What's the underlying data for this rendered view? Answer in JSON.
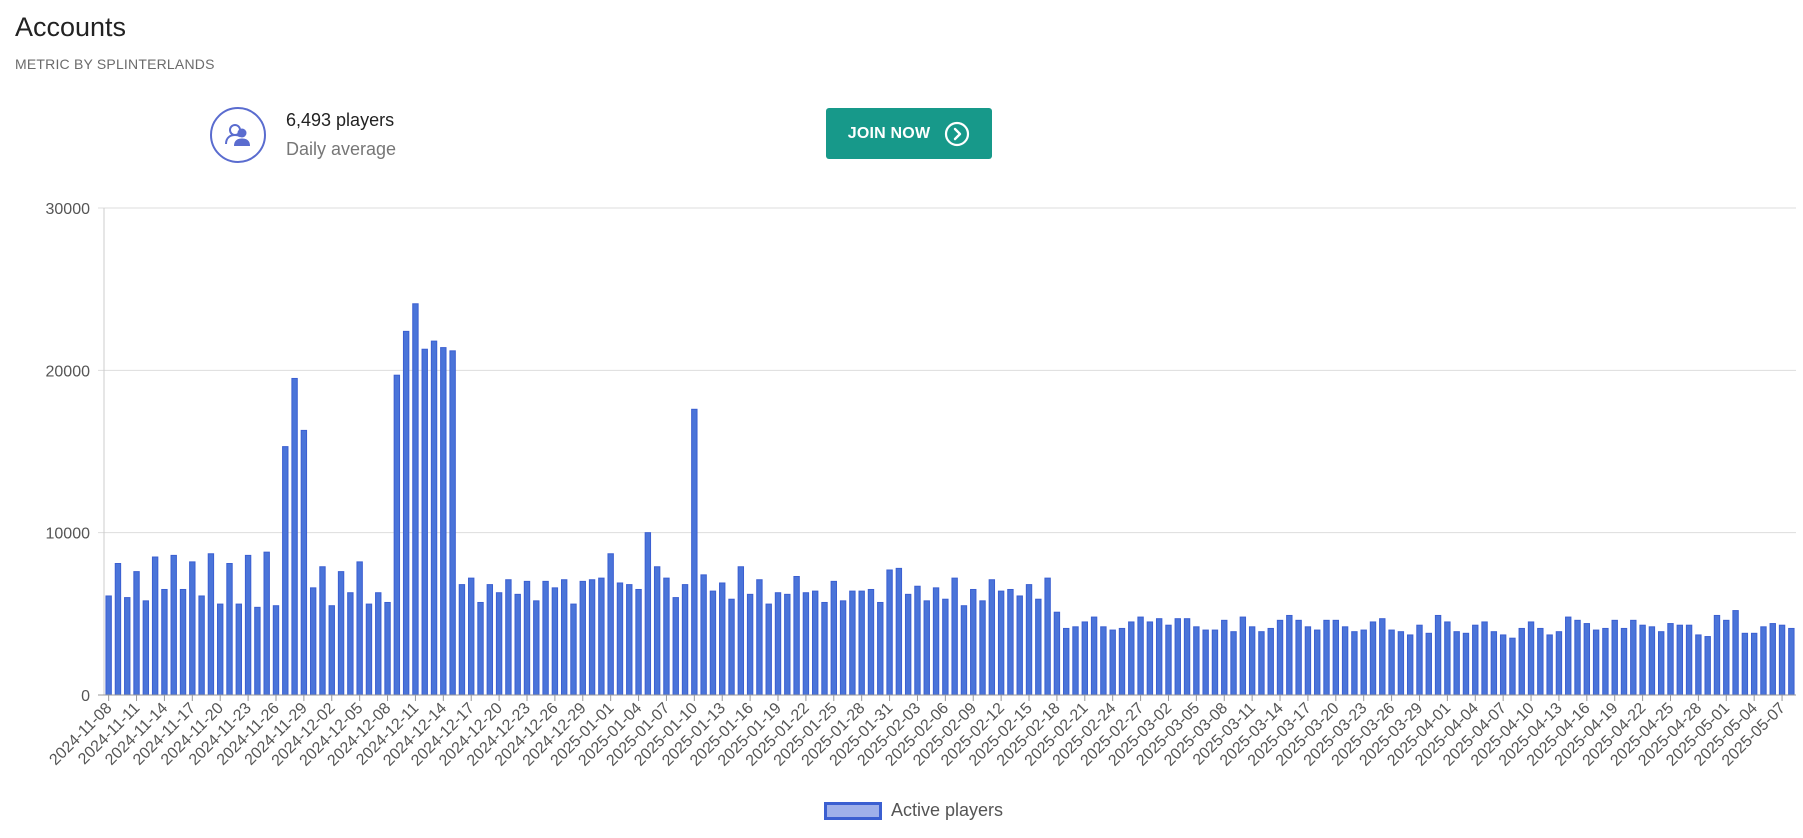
{
  "page": {
    "title": "Accounts",
    "subtitle": "METRIC BY SPLINTERLANDS"
  },
  "stat": {
    "value": "6,493 players",
    "label": "Daily average",
    "icon": "users-icon"
  },
  "cta": {
    "label": "JOIN NOW",
    "icon": "chevron-circle-right-icon",
    "color": "#17998a"
  },
  "chart_data": {
    "type": "bar",
    "start_date": "2024-11-08",
    "end_date": "2025-05-08",
    "categories": [
      "2024-11-08",
      "2024-11-09",
      "2024-11-10",
      "2024-11-11",
      "2024-11-12",
      "2024-11-13",
      "2024-11-14",
      "2024-11-15",
      "2024-11-16",
      "2024-11-17",
      "2024-11-18",
      "2024-11-19",
      "2024-11-20",
      "2024-11-21",
      "2024-11-22",
      "2024-11-23",
      "2024-11-24",
      "2024-11-25",
      "2024-11-26",
      "2024-11-27",
      "2024-11-28",
      "2024-11-29",
      "2024-11-30",
      "2024-12-01",
      "2024-12-02",
      "2024-12-03",
      "2024-12-04",
      "2024-12-05",
      "2024-12-06",
      "2024-12-07",
      "2024-12-08",
      "2024-12-09",
      "2024-12-10",
      "2024-12-11",
      "2024-12-12",
      "2024-12-13",
      "2024-12-14",
      "2024-12-15",
      "2024-12-16",
      "2024-12-17",
      "2024-12-18",
      "2024-12-19",
      "2024-12-20",
      "2024-12-21",
      "2024-12-22",
      "2024-12-23",
      "2024-12-24",
      "2024-12-25",
      "2024-12-26",
      "2024-12-27",
      "2024-12-28",
      "2024-12-29",
      "2024-12-30",
      "2024-12-31",
      "2025-01-01",
      "2025-01-02",
      "2025-01-03",
      "2025-01-04",
      "2025-01-05",
      "2025-01-06",
      "2025-01-07",
      "2025-01-08",
      "2025-01-09",
      "2025-01-10",
      "2025-01-11",
      "2025-01-12",
      "2025-01-13",
      "2025-01-14",
      "2025-01-15",
      "2025-01-16",
      "2025-01-17",
      "2025-01-18",
      "2025-01-19",
      "2025-01-20",
      "2025-01-21",
      "2025-01-22",
      "2025-01-23",
      "2025-01-24",
      "2025-01-25",
      "2025-01-26",
      "2025-01-27",
      "2025-01-28",
      "2025-01-29",
      "2025-01-30",
      "2025-01-31",
      "2025-02-01",
      "2025-02-02",
      "2025-02-03",
      "2025-02-04",
      "2025-02-05",
      "2025-02-06",
      "2025-02-07",
      "2025-02-08",
      "2025-02-09",
      "2025-02-10",
      "2025-02-11",
      "2025-02-12",
      "2025-02-13",
      "2025-02-14",
      "2025-02-15",
      "2025-02-16",
      "2025-02-17",
      "2025-02-18",
      "2025-02-19",
      "2025-02-20",
      "2025-02-21",
      "2025-02-22",
      "2025-02-23",
      "2025-02-24",
      "2025-02-25",
      "2025-02-26",
      "2025-02-27",
      "2025-02-28",
      "2025-03-01",
      "2025-03-02",
      "2025-03-03",
      "2025-03-04",
      "2025-03-05",
      "2025-03-06",
      "2025-03-07",
      "2025-03-08",
      "2025-03-09",
      "2025-03-10",
      "2025-03-11",
      "2025-03-12",
      "2025-03-13",
      "2025-03-14",
      "2025-03-15",
      "2025-03-16",
      "2025-03-17",
      "2025-03-18",
      "2025-03-19",
      "2025-03-20",
      "2025-03-21",
      "2025-03-22",
      "2025-03-23",
      "2025-03-24",
      "2025-03-25",
      "2025-03-26",
      "2025-03-27",
      "2025-03-28",
      "2025-03-29",
      "2025-03-30",
      "2025-03-31",
      "2025-04-01",
      "2025-04-02",
      "2025-04-03",
      "2025-04-04",
      "2025-04-05",
      "2025-04-06",
      "2025-04-07",
      "2025-04-08",
      "2025-04-09",
      "2025-04-10",
      "2025-04-11",
      "2025-04-12",
      "2025-04-13",
      "2025-04-14",
      "2025-04-15",
      "2025-04-16",
      "2025-04-17",
      "2025-04-18",
      "2025-04-19",
      "2025-04-20",
      "2025-04-21",
      "2025-04-22",
      "2025-04-23",
      "2025-04-24",
      "2025-04-25",
      "2025-04-26",
      "2025-04-27",
      "2025-04-28",
      "2025-04-29",
      "2025-04-30",
      "2025-05-01",
      "2025-05-02",
      "2025-05-03",
      "2025-05-04",
      "2025-05-05",
      "2025-05-06",
      "2025-05-07",
      "2025-05-08"
    ],
    "series": [
      {
        "name": "Active players",
        "color": "#3b5fd1",
        "fill": "#4a74d9",
        "values": [
          6100,
          8100,
          6000,
          7600,
          5800,
          8500,
          6500,
          8600,
          6500,
          8200,
          6100,
          8700,
          5600,
          8100,
          5600,
          8600,
          5400,
          8800,
          5500,
          15300,
          19500,
          16300,
          6600,
          7900,
          5500,
          7600,
          6300,
          8200,
          5600,
          6300,
          5700,
          19700,
          22400,
          24100,
          21300,
          21800,
          21400,
          21200,
          6800,
          7200,
          5700,
          6800,
          6300,
          7100,
          6200,
          7000,
          5800,
          7000,
          6600,
          7100,
          5600,
          7000,
          7100,
          7200,
          8700,
          6900,
          6800,
          6500,
          10000,
          7900,
          7200,
          6000,
          6800,
          17600,
          7400,
          6400,
          6900,
          5900,
          7900,
          6200,
          7100,
          5600,
          6300,
          6200,
          7300,
          6300,
          6400,
          5700,
          7000,
          5800,
          6400,
          6400,
          6500,
          5700,
          7700,
          7800,
          6200,
          6700,
          5800,
          6600,
          5900,
          7200,
          5500,
          6500,
          5800,
          7100,
          6400,
          6500,
          6100,
          6800,
          5900,
          7200,
          5100,
          4100,
          4200,
          4500,
          4800,
          4200,
          4000,
          4100,
          4500,
          4800,
          4500,
          4700,
          4300,
          4700,
          4700,
          4200,
          4000,
          4000,
          4600,
          3900,
          4800,
          4200,
          3900,
          4100,
          4600,
          4900,
          4600,
          4200,
          4000,
          4600,
          4600,
          4200,
          3900,
          4000,
          4500,
          4700,
          4000,
          3900,
          3700,
          4300,
          3800,
          4900,
          4500,
          3900,
          3800,
          4300,
          4500,
          3900,
          3700,
          3500,
          4100,
          4500,
          4100,
          3700,
          3900,
          4800,
          4600,
          4400,
          4000,
          4100,
          4600,
          4100,
          4600,
          4300,
          4200,
          3900,
          4400,
          4300,
          4300,
          3700,
          3600,
          4900,
          4600,
          5200,
          3800,
          3800,
          4200,
          4400,
          4300,
          4100
        ]
      }
    ],
    "xtick_labels": [
      "2024-11-08",
      "2024-11-11",
      "2024-11-14",
      "2024-11-17",
      "2024-11-20",
      "2024-11-23",
      "2024-11-26",
      "2024-11-29",
      "2024-12-02",
      "2024-12-05",
      "2024-12-08",
      "2024-12-11",
      "2024-12-14",
      "2024-12-17",
      "2024-12-20",
      "2024-12-23",
      "2024-12-26",
      "2024-12-29",
      "2025-01-01",
      "2025-01-04",
      "2025-01-07",
      "2025-01-10",
      "2025-01-13",
      "2025-01-16",
      "2025-01-19",
      "2025-01-22",
      "2025-01-25",
      "2025-01-28",
      "2025-01-31",
      "2025-02-03",
      "2025-02-06",
      "2025-02-09",
      "2025-02-12",
      "2025-02-15",
      "2025-02-18",
      "2025-02-21",
      "2025-02-24",
      "2025-02-27",
      "2025-03-02",
      "2025-03-05",
      "2025-03-08",
      "2025-03-11",
      "2025-03-14",
      "2025-03-17",
      "2025-03-20",
      "2025-03-23",
      "2025-03-26",
      "2025-03-29",
      "2025-04-01",
      "2025-04-04",
      "2025-04-07",
      "2025-04-10",
      "2025-04-13",
      "2025-04-16",
      "2025-04-19",
      "2025-04-22",
      "2025-04-25",
      "2025-04-28",
      "2025-05-01",
      "2025-05-04",
      "2025-05-07"
    ],
    "yticks": [
      0,
      10000,
      20000,
      30000
    ],
    "ylim": [
      0,
      30000
    ],
    "xlabel": "",
    "ylabel": "",
    "grid": true,
    "legend": "bottom-center"
  }
}
